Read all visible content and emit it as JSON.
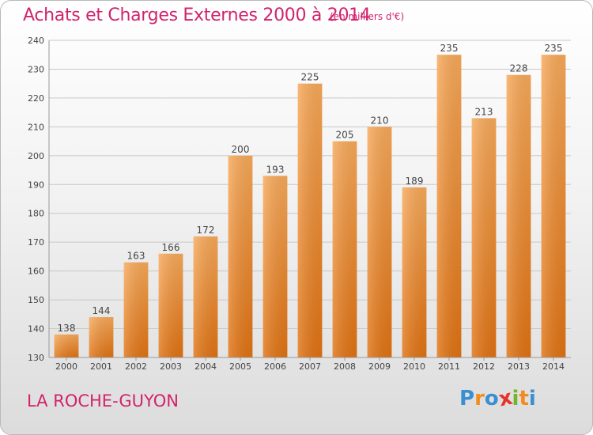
{
  "header": {
    "title": "Achats et Charges Externes 2000 à 2014",
    "unit": "(en milliers d'€)"
  },
  "footer": {
    "city": "LA ROCHE-GUYON",
    "logo": [
      "P",
      "r",
      "o",
      "x",
      "i",
      "t",
      "i"
    ],
    "logo_colors": [
      "#3a8fd0",
      "#f28c1e",
      "#3a8fd0",
      "#e6322b",
      "#73b52c",
      "#f28c1e",
      "#3a8fd0"
    ]
  },
  "chart_data": {
    "type": "bar",
    "title": "Achats et Charges Externes 2000 à 2014",
    "subtitle": "(en milliers d'€)",
    "categories": [
      "2000",
      "2001",
      "2002",
      "2003",
      "2004",
      "2005",
      "2006",
      "2007",
      "2008",
      "2009",
      "2010",
      "2011",
      "2012",
      "2013",
      "2014"
    ],
    "values": [
      138,
      144,
      163,
      166,
      172,
      200,
      193,
      225,
      205,
      210,
      189,
      235,
      213,
      228,
      235
    ],
    "ylim": [
      130,
      240
    ],
    "yticks": [
      130,
      140,
      150,
      160,
      170,
      180,
      190,
      200,
      210,
      220,
      230,
      240
    ],
    "grid": true,
    "bar_color": "#f28c2e"
  }
}
